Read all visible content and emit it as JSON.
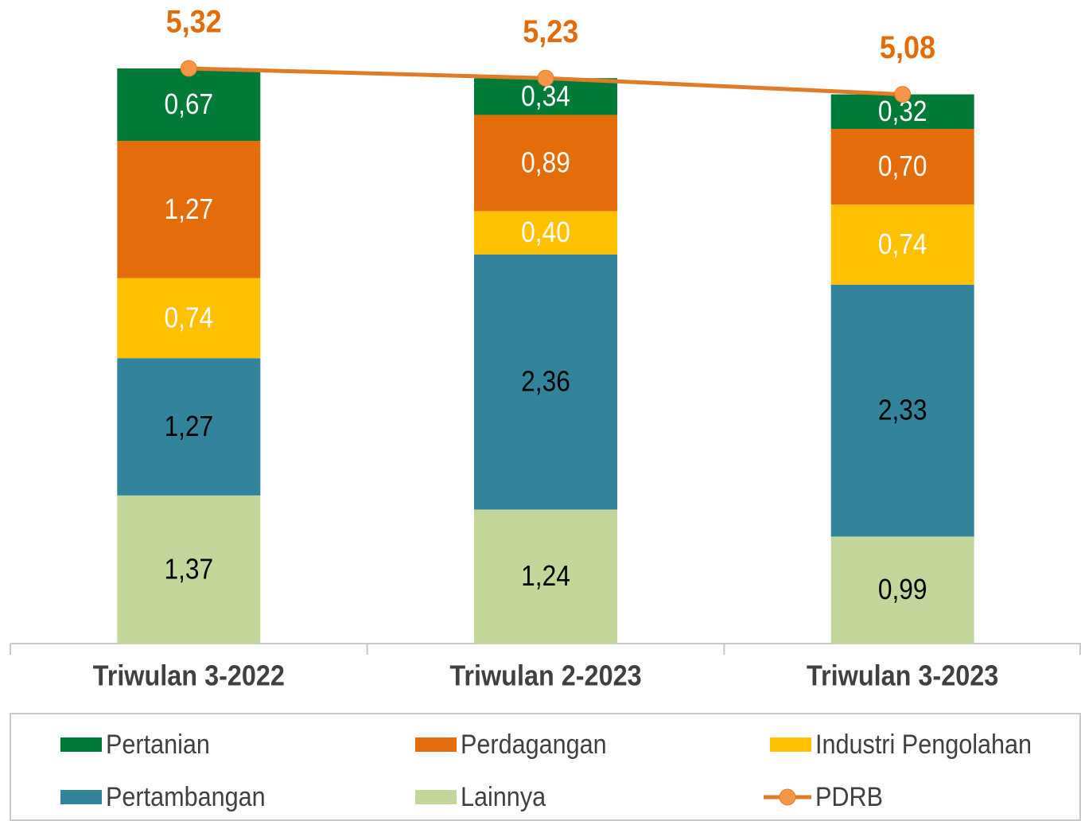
{
  "chart_data": {
    "type": "bar",
    "categories": [
      "Triwulan 3-2022",
      "Triwulan 2-2023",
      "Triwulan 3-2023"
    ],
    "stacked": true,
    "series": [
      {
        "name": "Pertanian",
        "color": "#007a37",
        "label_color": "#ffffff",
        "values": [
          0.67,
          0.34,
          0.32
        ],
        "value_labels": [
          "0,67",
          "0,34",
          "0,32"
        ]
      },
      {
        "name": "Perdagangan",
        "color": "#e46c0a",
        "label_color": "#ffffff",
        "values": [
          1.27,
          0.89,
          0.7
        ],
        "value_labels": [
          "1,27",
          "0,89",
          "0,70"
        ]
      },
      {
        "name": "Industri Pengolahan",
        "color": "#ffc000",
        "label_color": "#ffffff",
        "values": [
          0.74,
          0.4,
          0.74
        ],
        "value_labels": [
          "0,74",
          "0,40",
          "0,74"
        ]
      },
      {
        "name": "Pertambangan",
        "color": "#31849b",
        "label_color": "#000000",
        "values": [
          1.27,
          2.36,
          2.33
        ],
        "value_labels": [
          "1,27",
          "2,36",
          "2,33"
        ]
      },
      {
        "name": "Lainnya",
        "color": "#c4d79b",
        "label_color": "#000000",
        "values": [
          1.37,
          1.24,
          0.99
        ],
        "value_labels": [
          "1,37",
          "1,24",
          "0,99"
        ]
      },
      {
        "name": "PDRB",
        "type": "line",
        "color": "#e07b28",
        "marker_color": "#f79646",
        "label_color": "#e36c09",
        "values": [
          5.32,
          5.23,
          5.08
        ],
        "value_labels": [
          "5,32",
          "5,23",
          "5,08"
        ]
      }
    ],
    "legend": "bottom"
  }
}
